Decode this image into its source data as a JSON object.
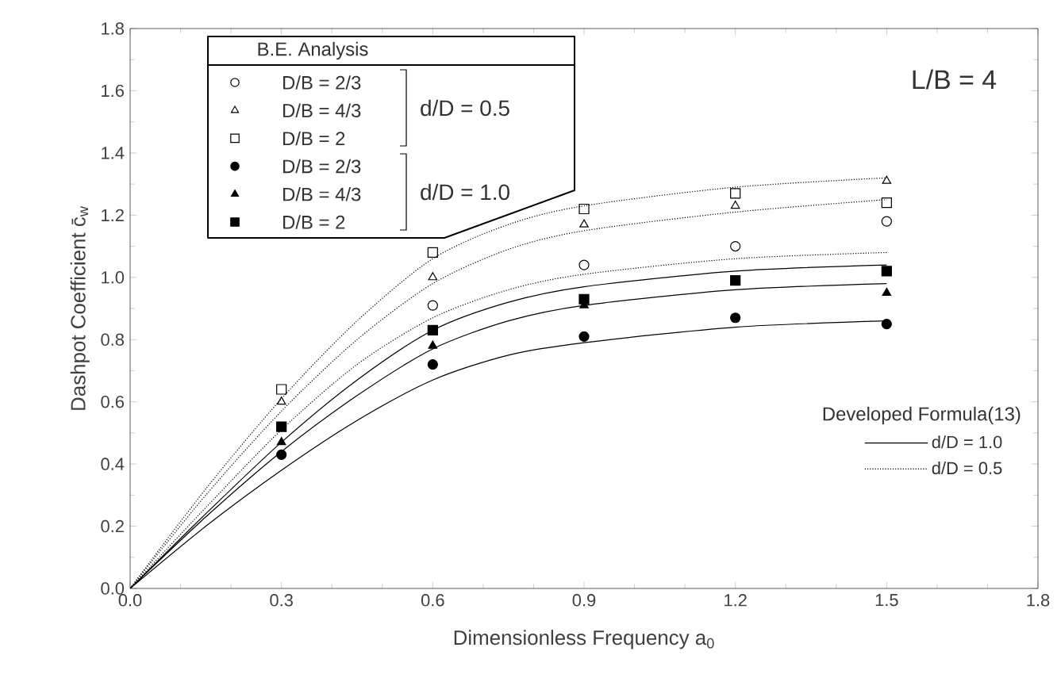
{
  "chart_data": {
    "type": "scatter",
    "xlabel": "Dimensionless Frequency a$_{0}$",
    "ylabel": "Dashpot Coefficient c̄$_{w}$",
    "legend_title": "B.E. Analysis",
    "legend": "top left",
    "annotations": [
      "L/B = 4",
      "d/D = 0.5",
      "d/D = 1.0",
      "Developed Formula(13)"
    ],
    "xlim": [
      0,
      1.8
    ],
    "ylim": [
      0,
      1.8
    ],
    "xticks": [
      {
        "value": 0,
        "label": "0.0"
      },
      0.3,
      0.6,
      0.9,
      1.2,
      1.5,
      1.8
    ],
    "yticks": [
      {
        "value": 0,
        "label": "0.0"
      },
      0.2,
      0.4,
      0.6,
      0.8,
      {
        "value": 1,
        "label": "1.0"
      },
      1.2,
      1.4,
      1.6,
      1.8
    ],
    "series": [
      {
        "name": "D/B = 2/3",
        "marker": "circle",
        "color": "#000000",
        "x": [
          0.6,
          0.9,
          1.2,
          1.5
        ],
        "values": [
          0.91,
          1.04,
          1.1,
          1.18
        ]
      },
      {
        "name": "D/B = 4/3",
        "marker": "triangle",
        "color": "#000000",
        "x": [
          0.3,
          0.6,
          0.9,
          1.2,
          1.5
        ],
        "values": [
          0.6,
          1.0,
          1.17,
          1.23,
          1.31
        ]
      },
      {
        "name": "D/B = 2",
        "marker": "square",
        "color": "#000000",
        "x": [
          0.3,
          0.6,
          0.9,
          1.2,
          1.5
        ],
        "values": [
          0.64,
          1.08,
          1.22,
          1.27,
          1.24
        ]
      },
      {
        "name": "D/B = 2/3",
        "marker": "circle",
        "color": "#000000",
        "x": [
          0.3,
          0.6,
          0.9,
          1.2,
          1.5
        ],
        "values": [
          0.43,
          0.72,
          0.81,
          0.87,
          0.85
        ]
      },
      {
        "name": "D/B = 4/3",
        "marker": "triangle",
        "color": "#000000",
        "x": [
          0.3,
          0.6,
          0.9,
          1.2,
          1.5
        ],
        "values": [
          0.47,
          0.78,
          0.91,
          null,
          0.95
        ]
      },
      {
        "name": "D/B = 2",
        "marker": "square",
        "color": "#000000",
        "x": [
          0.3,
          0.6,
          0.9,
          1.2,
          1.5
        ],
        "values": [
          0.52,
          0.83,
          0.93,
          0.99,
          1.02
        ]
      },
      {
        "name": "d/D = 1.0",
        "type": "line",
        "line_style": "solid",
        "color": "#000000",
        "x": [
          0,
          0.15,
          0.3,
          0.45,
          0.6,
          0.75,
          0.9,
          1.2,
          1.5
        ],
        "values": [
          0,
          0.2,
          0.38,
          0.54,
          0.67,
          0.75,
          0.79,
          0.84,
          0.86
        ]
      },
      {
        "type": "line",
        "line_style": "solid",
        "color": "#000000",
        "x": [
          0,
          0.15,
          0.3,
          0.45,
          0.6,
          0.75,
          0.9,
          1.2,
          1.5
        ],
        "values": [
          0,
          0.23,
          0.44,
          0.62,
          0.77,
          0.86,
          0.91,
          0.96,
          0.98
        ]
      },
      {
        "type": "line",
        "line_style": "solid",
        "color": "#000000",
        "x": [
          0,
          0.15,
          0.3,
          0.45,
          0.6,
          0.75,
          0.9,
          1.2,
          1.5
        ],
        "values": [
          0,
          0.24,
          0.47,
          0.67,
          0.83,
          0.92,
          0.97,
          1.02,
          1.04
        ]
      },
      {
        "name": "d/D = 0.5",
        "type": "line",
        "line_style": "dotted",
        "color": "#000000",
        "x": [
          0,
          0.15,
          0.3,
          0.45,
          0.6,
          0.75,
          0.9,
          1.2,
          1.5
        ],
        "values": [
          0,
          0.26,
          0.51,
          0.72,
          0.87,
          0.96,
          1.01,
          1.06,
          1.08
        ]
      },
      {
        "type": "line",
        "line_style": "dotted",
        "color": "#000000",
        "x": [
          0,
          0.15,
          0.3,
          0.45,
          0.6,
          0.75,
          0.9,
          1.2,
          1.5
        ],
        "values": [
          0,
          0.3,
          0.57,
          0.8,
          0.98,
          1.09,
          1.15,
          1.21,
          1.25
        ]
      },
      {
        "type": "line",
        "line_style": "dotted",
        "color": "#000000",
        "x": [
          0,
          0.15,
          0.3,
          0.45,
          0.6,
          0.75,
          0.9,
          1.2,
          1.5
        ],
        "values": [
          0,
          0.32,
          0.61,
          0.86,
          1.06,
          1.17,
          1.23,
          1.29,
          1.32
        ]
      }
    ]
  }
}
